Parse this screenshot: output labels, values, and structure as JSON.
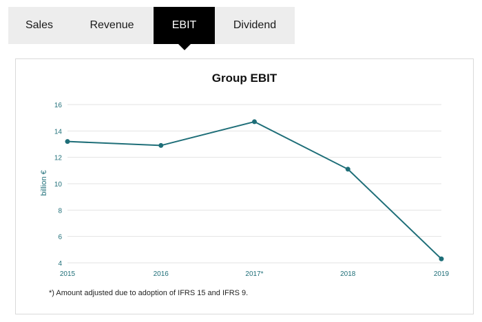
{
  "tabs": [
    {
      "label": "Sales",
      "active": false
    },
    {
      "label": "Revenue",
      "active": false
    },
    {
      "label": "EBIT",
      "active": true
    },
    {
      "label": "Dividend",
      "active": false
    }
  ],
  "chart_data": {
    "type": "line",
    "title": "Group EBIT",
    "ylabel": "billion €",
    "xlabel": "",
    "categories": [
      "2015",
      "2016",
      "2017*",
      "2018",
      "2019"
    ],
    "series": [
      {
        "values": [
          13.2,
          12.9,
          14.7,
          11.1,
          4.3
        ]
      }
    ],
    "ylim": [
      4,
      16
    ],
    "yticks": [
      4,
      6,
      8,
      10,
      12,
      14,
      16
    ],
    "grid": true,
    "colors": {
      "line": "#1e6e78",
      "axis_text": "#1e6e78",
      "grid": "#e3e3e3"
    }
  },
  "footnote": "*) Amount adjusted due to adoption of IFRS 15 and IFRS 9."
}
